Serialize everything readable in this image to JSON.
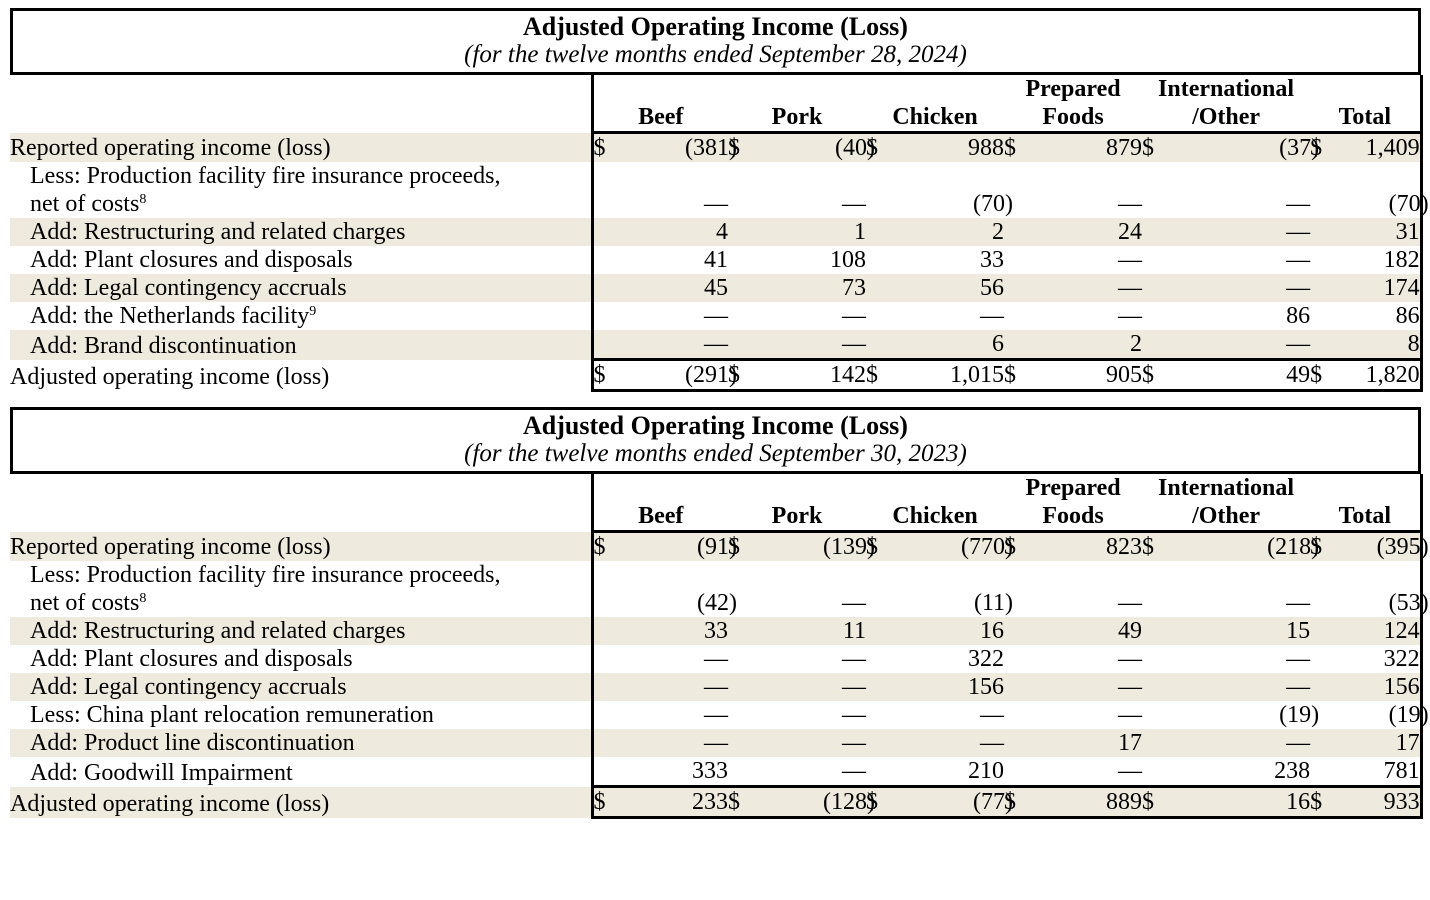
{
  "currency_symbol": "$",
  "colors": {
    "row_shade": "#eeeadd",
    "border": "#000000",
    "text": "#000000",
    "background": "#ffffff"
  },
  "tables": [
    {
      "title": "Adjusted Operating Income (Loss)",
      "subtitle": "(for the twelve months ended September 28, 2024)",
      "columns": [
        [
          "Beef"
        ],
        [
          "Pork"
        ],
        [
          "Chicken"
        ],
        [
          "Prepared",
          "Foods"
        ],
        [
          "International",
          "/Other"
        ],
        [
          "Total"
        ]
      ],
      "rows": [
        {
          "label_lines": [
            "Reported operating income (loss)"
          ],
          "indent": false,
          "dollar": true,
          "shaded": true,
          "total": false,
          "values": [
            "(381)",
            "(40)",
            "988",
            "879",
            "(37)",
            "1,409"
          ]
        },
        {
          "label_lines": [
            "Less: Production facility fire insurance proceeds,",
            "net of costs"
          ],
          "sup": "8",
          "indent": true,
          "dollar": false,
          "shaded": false,
          "total": false,
          "values": [
            "—",
            "—",
            "(70)",
            "—",
            "—",
            "(70)"
          ]
        },
        {
          "label_lines": [
            "Add: Restructuring and related charges"
          ],
          "indent": true,
          "dollar": false,
          "shaded": true,
          "total": false,
          "values": [
            "4",
            "1",
            "2",
            "24",
            "—",
            "31"
          ]
        },
        {
          "label_lines": [
            "Add: Plant closures and disposals"
          ],
          "indent": true,
          "dollar": false,
          "shaded": false,
          "total": false,
          "values": [
            "41",
            "108",
            "33",
            "—",
            "—",
            "182"
          ]
        },
        {
          "label_lines": [
            "Add: Legal contingency accruals"
          ],
          "indent": true,
          "dollar": false,
          "shaded": true,
          "total": false,
          "values": [
            "45",
            "73",
            "56",
            "—",
            "—",
            "174"
          ]
        },
        {
          "label_lines": [
            "Add: the Netherlands facility"
          ],
          "sup": "9",
          "indent": true,
          "dollar": false,
          "shaded": false,
          "total": false,
          "values": [
            "—",
            "—",
            "—",
            "—",
            "86",
            "86"
          ]
        },
        {
          "label_lines": [
            "Add: Brand discontinuation"
          ],
          "indent": true,
          "dollar": false,
          "shaded": true,
          "total": false,
          "values": [
            "—",
            "—",
            "6",
            "2",
            "—",
            "8"
          ]
        },
        {
          "label_lines": [
            "Adjusted operating income (loss)"
          ],
          "indent": false,
          "dollar": true,
          "shaded": false,
          "total": true,
          "values": [
            "(291)",
            "142",
            "1,015",
            "905",
            "49",
            "1,820"
          ]
        }
      ]
    },
    {
      "title": "Adjusted Operating Income (Loss)",
      "subtitle": "(for the twelve months ended September 30, 2023)",
      "columns": [
        [
          "Beef"
        ],
        [
          "Pork"
        ],
        [
          "Chicken"
        ],
        [
          "Prepared",
          "Foods"
        ],
        [
          "International",
          "/Other"
        ],
        [
          "Total"
        ]
      ],
      "rows": [
        {
          "label_lines": [
            "Reported operating income (loss)"
          ],
          "indent": false,
          "dollar": true,
          "shaded": true,
          "total": false,
          "values": [
            "(91)",
            "(139)",
            "(770)",
            "823",
            "(218)",
            "(395)"
          ]
        },
        {
          "label_lines": [
            "Less: Production facility fire insurance proceeds,",
            "net of costs"
          ],
          "sup": "8",
          "indent": true,
          "dollar": false,
          "shaded": false,
          "total": false,
          "values": [
            "(42)",
            "—",
            "(11)",
            "—",
            "—",
            "(53)"
          ]
        },
        {
          "label_lines": [
            "Add: Restructuring and related charges"
          ],
          "indent": true,
          "dollar": false,
          "shaded": true,
          "total": false,
          "values": [
            "33",
            "11",
            "16",
            "49",
            "15",
            "124"
          ]
        },
        {
          "label_lines": [
            "Add: Plant closures and disposals"
          ],
          "indent": true,
          "dollar": false,
          "shaded": false,
          "total": false,
          "values": [
            "—",
            "—",
            "322",
            "—",
            "—",
            "322"
          ]
        },
        {
          "label_lines": [
            "Add: Legal contingency accruals"
          ],
          "indent": true,
          "dollar": false,
          "shaded": true,
          "total": false,
          "values": [
            "—",
            "—",
            "156",
            "—",
            "—",
            "156"
          ]
        },
        {
          "label_lines": [
            "Less: China plant relocation remuneration"
          ],
          "indent": true,
          "dollar": false,
          "shaded": false,
          "total": false,
          "values": [
            "—",
            "—",
            "—",
            "—",
            "(19)",
            "(19)"
          ]
        },
        {
          "label_lines": [
            "Add: Product line discontinuation"
          ],
          "indent": true,
          "dollar": false,
          "shaded": true,
          "total": false,
          "values": [
            "—",
            "—",
            "—",
            "17",
            "—",
            "17"
          ]
        },
        {
          "label_lines": [
            "Add: Goodwill Impairment"
          ],
          "indent": true,
          "dollar": false,
          "shaded": false,
          "total": false,
          "values": [
            "333",
            "—",
            "210",
            "—",
            "238",
            "781"
          ]
        },
        {
          "label_lines": [
            "Adjusted operating income (loss)"
          ],
          "indent": false,
          "dollar": true,
          "shaded": true,
          "total": true,
          "values": [
            "233",
            "(128)",
            "(77)",
            "889",
            "16",
            "933"
          ]
        }
      ]
    }
  ]
}
